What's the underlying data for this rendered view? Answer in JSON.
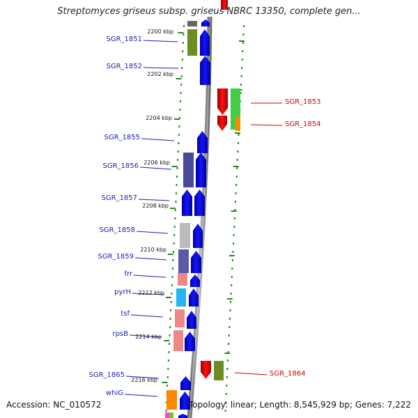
{
  "header": {
    "title": "Streptomyces griseus subsp. griseus NBRC 13350, complete gen..."
  },
  "footer": {
    "accession": "Accession: NC_010572",
    "summary": "Topology: linear; Length: 8,545,929 bp; Genes: 7,222"
  },
  "ticks": [
    "2200 kbp",
    "2202 kbp",
    "2204 kbp",
    "2206 kbp",
    "2208 kbp",
    "2210 kbp",
    "2212 kbp",
    "2214 kbp",
    "2216 kbp"
  ],
  "genes_left": [
    "SGR_1851",
    "SGR_1852",
    "SGR_1855",
    "SGR_1856",
    "SGR_1857",
    "SGR_1858",
    "SGR_1859",
    "frr",
    "pyrH",
    "tsf",
    "rpsB",
    "SGR_1865",
    "whiG"
  ],
  "genes_right": [
    "SGR_1853",
    "SGR_1854",
    "SGR_1864"
  ],
  "colors": {
    "forward_cds": "#0000ee",
    "reverse_cds": "#ee0000",
    "backbone": "#8a8a8a",
    "dots": "#1f8a1f",
    "left_label": "#1b1bb0",
    "right_label": "#d40000"
  }
}
